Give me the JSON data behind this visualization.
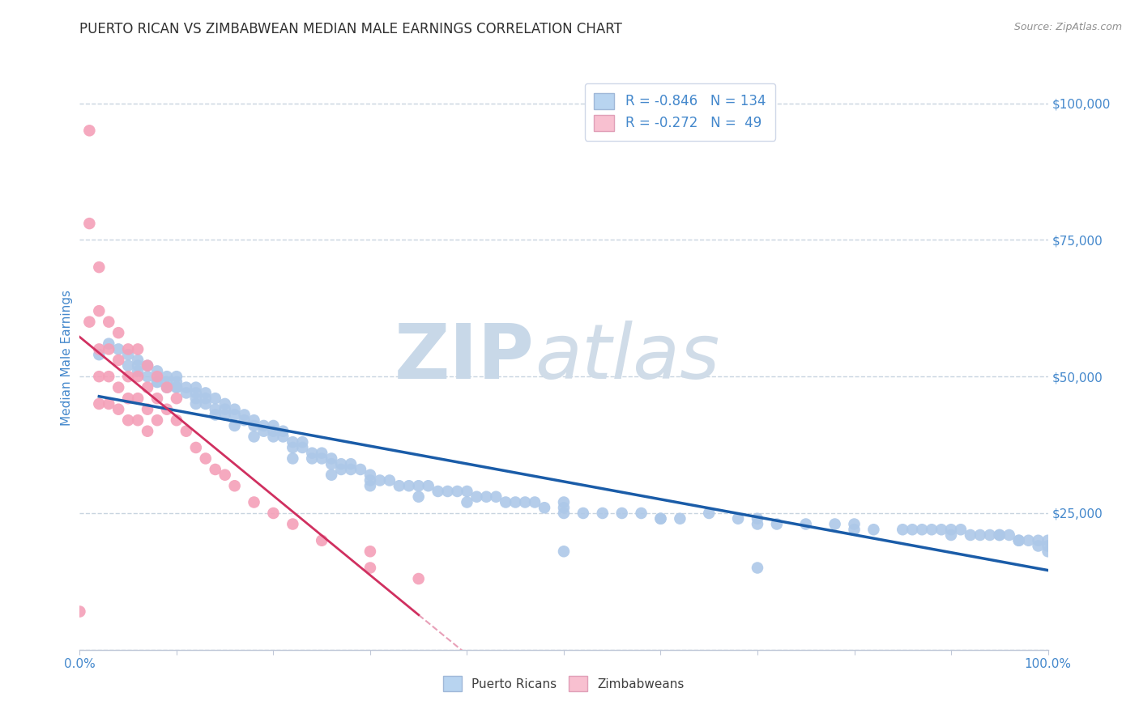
{
  "title": "PUERTO RICAN VS ZIMBABWEAN MEDIAN MALE EARNINGS CORRELATION CHART",
  "source": "Source: ZipAtlas.com",
  "ylabel": "Median Male Earnings",
  "watermark_zip": "ZIP",
  "watermark_atlas": "atlas",
  "x_min": 0.0,
  "x_max": 1.0,
  "y_min": 0,
  "y_max": 107000,
  "y_ticks": [
    0,
    25000,
    50000,
    75000,
    100000
  ],
  "y_tick_labels": [
    "",
    "$25,000",
    "$50,000",
    "$75,000",
    "$100,000"
  ],
  "x_ticks": [
    0.0,
    0.1,
    0.2,
    0.3,
    0.4,
    0.5,
    0.6,
    0.7,
    0.8,
    0.9,
    1.0
  ],
  "x_tick_labels": [
    "0.0%",
    "",
    "",
    "",
    "",
    "",
    "",
    "",
    "",
    "",
    "100.0%"
  ],
  "blue_R": -0.846,
  "blue_N": 134,
  "pink_R": -0.272,
  "pink_N": 49,
  "dot_color_blue": "#adc8e8",
  "dot_color_pink": "#f4a0b8",
  "line_color_blue": "#1a5ca8",
  "line_color_pink": "#d03060",
  "line_color_pink_dash": "#e8a0b8",
  "legend_color_blue": "#b8d4f0",
  "legend_color_pink": "#f8c0d0",
  "title_color": "#303030",
  "axis_label_color": "#4488cc",
  "source_color": "#909090",
  "grid_color": "#c8d4e0",
  "background_color": "#ffffff",
  "watermark_color_zip": "#c8d8e8",
  "watermark_color_atlas": "#d0dce8",
  "title_fontsize": 12,
  "blue_scatter_x": [
    0.02,
    0.03,
    0.04,
    0.05,
    0.05,
    0.06,
    0.06,
    0.07,
    0.07,
    0.08,
    0.08,
    0.09,
    0.09,
    0.09,
    0.1,
    0.1,
    0.1,
    0.11,
    0.11,
    0.12,
    0.12,
    0.12,
    0.13,
    0.13,
    0.13,
    0.14,
    0.14,
    0.15,
    0.15,
    0.15,
    0.16,
    0.16,
    0.17,
    0.17,
    0.18,
    0.18,
    0.19,
    0.19,
    0.2,
    0.2,
    0.2,
    0.21,
    0.21,
    0.22,
    0.22,
    0.23,
    0.23,
    0.24,
    0.24,
    0.25,
    0.25,
    0.26,
    0.26,
    0.27,
    0.27,
    0.28,
    0.28,
    0.29,
    0.3,
    0.3,
    0.31,
    0.32,
    0.33,
    0.34,
    0.35,
    0.36,
    0.37,
    0.38,
    0.39,
    0.4,
    0.41,
    0.42,
    0.43,
    0.44,
    0.45,
    0.46,
    0.47,
    0.48,
    0.5,
    0.5,
    0.52,
    0.54,
    0.56,
    0.58,
    0.6,
    0.62,
    0.65,
    0.68,
    0.7,
    0.72,
    0.75,
    0.78,
    0.8,
    0.82,
    0.85,
    0.86,
    0.87,
    0.88,
    0.89,
    0.9,
    0.91,
    0.92,
    0.93,
    0.94,
    0.95,
    0.96,
    0.97,
    0.98,
    0.99,
    1.0,
    1.0,
    1.0,
    0.06,
    0.08,
    0.1,
    0.12,
    0.14,
    0.16,
    0.18,
    0.22,
    0.26,
    0.3,
    0.35,
    0.4,
    0.5,
    0.6,
    0.7,
    0.8,
    0.9,
    0.95,
    0.97,
    0.99,
    0.5,
    0.7
  ],
  "blue_scatter_y": [
    54000,
    56000,
    55000,
    54000,
    52000,
    51000,
    53000,
    50000,
    52000,
    51000,
    49000,
    50000,
    49000,
    48000,
    49000,
    48000,
    50000,
    48000,
    47000,
    48000,
    47000,
    46000,
    47000,
    46000,
    45000,
    46000,
    44000,
    45000,
    44000,
    43000,
    44000,
    43000,
    43000,
    42000,
    42000,
    41000,
    41000,
    40000,
    41000,
    40000,
    39000,
    40000,
    39000,
    38000,
    37000,
    38000,
    37000,
    36000,
    35000,
    36000,
    35000,
    35000,
    34000,
    34000,
    33000,
    34000,
    33000,
    33000,
    32000,
    31000,
    31000,
    31000,
    30000,
    30000,
    30000,
    30000,
    29000,
    29000,
    29000,
    29000,
    28000,
    28000,
    28000,
    27000,
    27000,
    27000,
    27000,
    26000,
    26000,
    27000,
    25000,
    25000,
    25000,
    25000,
    24000,
    24000,
    25000,
    24000,
    24000,
    23000,
    23000,
    23000,
    23000,
    22000,
    22000,
    22000,
    22000,
    22000,
    22000,
    22000,
    22000,
    21000,
    21000,
    21000,
    21000,
    21000,
    20000,
    20000,
    20000,
    20000,
    19000,
    18000,
    52000,
    49000,
    48000,
    45000,
    43000,
    41000,
    39000,
    35000,
    32000,
    30000,
    28000,
    27000,
    25000,
    24000,
    23000,
    22000,
    21000,
    21000,
    20000,
    19000,
    18000,
    15000
  ],
  "pink_scatter_x": [
    0.0,
    0.01,
    0.01,
    0.01,
    0.02,
    0.02,
    0.02,
    0.02,
    0.02,
    0.03,
    0.03,
    0.03,
    0.03,
    0.04,
    0.04,
    0.04,
    0.04,
    0.05,
    0.05,
    0.05,
    0.05,
    0.06,
    0.06,
    0.06,
    0.06,
    0.07,
    0.07,
    0.07,
    0.07,
    0.08,
    0.08,
    0.08,
    0.09,
    0.09,
    0.1,
    0.1,
    0.11,
    0.12,
    0.13,
    0.14,
    0.15,
    0.16,
    0.18,
    0.2,
    0.22,
    0.25,
    0.3,
    0.3,
    0.35
  ],
  "pink_scatter_y": [
    7000,
    95000,
    78000,
    60000,
    70000,
    62000,
    55000,
    50000,
    45000,
    60000,
    55000,
    50000,
    45000,
    58000,
    53000,
    48000,
    44000,
    55000,
    50000,
    46000,
    42000,
    55000,
    50000,
    46000,
    42000,
    52000,
    48000,
    44000,
    40000,
    50000,
    46000,
    42000,
    48000,
    44000,
    46000,
    42000,
    40000,
    37000,
    35000,
    33000,
    32000,
    30000,
    27000,
    25000,
    23000,
    20000,
    18000,
    15000,
    13000
  ]
}
